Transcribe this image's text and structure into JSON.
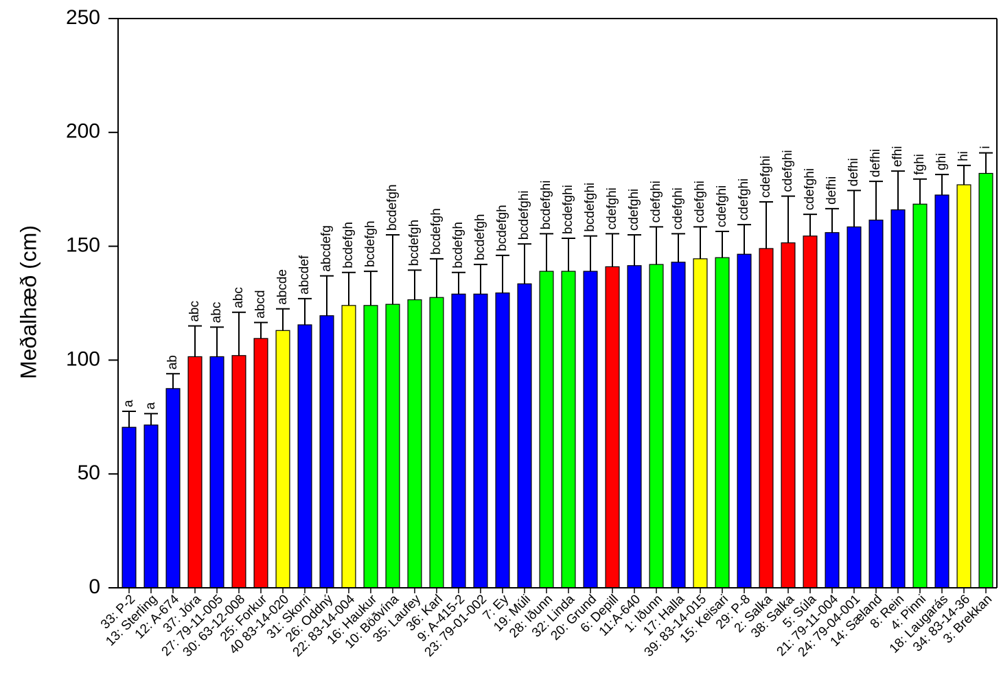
{
  "chart_data": {
    "type": "bar",
    "title": "",
    "xlabel": "",
    "ylabel": "Meðalhæð (cm)",
    "ylim": [
      0,
      250
    ],
    "yticks": [
      0,
      50,
      100,
      150,
      200,
      250
    ],
    "grid": false,
    "legend": "none",
    "error_bars": true,
    "colors": {
      "blue": "#0000ff",
      "red": "#ff0000",
      "yellow": "#ffff00",
      "green": "#00ff00",
      "axis": "#000000"
    },
    "bars": [
      {
        "label": "33: P-2",
        "value": 70.5,
        "error": 7,
        "group": "a",
        "color": "blue"
      },
      {
        "label": "13: Sterling",
        "value": 71.5,
        "error": 5,
        "group": "a",
        "color": "blue"
      },
      {
        "label": "12: A-674",
        "value": 87.5,
        "error": 6.5,
        "group": "ab",
        "color": "blue"
      },
      {
        "label": "37: Jóra",
        "value": 101.5,
        "error": 13.5,
        "group": "abc",
        "color": "red"
      },
      {
        "label": "27: 79-11-005",
        "value": 101.5,
        "error": 13,
        "group": "abc",
        "color": "blue"
      },
      {
        "label": "30: 63-12-008",
        "value": 102,
        "error": 19,
        "group": "abc",
        "color": "red"
      },
      {
        "label": "25: Forkur",
        "value": 109.5,
        "error": 7,
        "group": "abcd",
        "color": "red"
      },
      {
        "label": "40 83-14-020",
        "value": 113,
        "error": 9.5,
        "group": "abcde",
        "color": "yellow"
      },
      {
        "label": "31: Skorri",
        "value": 115.5,
        "error": 11.5,
        "group": "abcdef",
        "color": "blue"
      },
      {
        "label": "26: Oddný",
        "value": 119.5,
        "error": 17.5,
        "group": "abcdefg",
        "color": "blue"
      },
      {
        "label": "22: 83-14-004",
        "value": 124,
        "error": 14.5,
        "group": "bcdefgh",
        "color": "yellow"
      },
      {
        "label": "16: Haukur",
        "value": 124,
        "error": 15,
        "group": "bcdefgh",
        "color": "green"
      },
      {
        "label": "10: Böðvína",
        "value": 124.5,
        "error": 30.5,
        "group": "bcdefgh",
        "color": "green"
      },
      {
        "label": "35: Laufey",
        "value": 126.5,
        "error": 13,
        "group": "bcdefgh",
        "color": "green"
      },
      {
        "label": "36: Karl",
        "value": 127.5,
        "error": 17,
        "group": "bcdefgh",
        "color": "green"
      },
      {
        "label": "9: A-415-2",
        "value": 129,
        "error": 9.5,
        "group": "bcdefgh",
        "color": "blue"
      },
      {
        "label": "23: 79-01-002",
        "value": 129,
        "error": 13,
        "group": "bcdefgh",
        "color": "blue"
      },
      {
        "label": "7: Ey",
        "value": 129.5,
        "error": 16.5,
        "group": "bcdefgh",
        "color": "blue"
      },
      {
        "label": "19: Múli",
        "value": 133.5,
        "error": 17.5,
        "group": "bcdefghi",
        "color": "blue"
      },
      {
        "label": "28: Iðunn",
        "value": 139,
        "error": 16.5,
        "group": "bcdefghi",
        "color": "green"
      },
      {
        "label": "32: Linda",
        "value": 139,
        "error": 14.5,
        "group": "bcdefghi",
        "color": "green"
      },
      {
        "label": "20: Grund",
        "value": 139,
        "error": 15.5,
        "group": "bcdefghi",
        "color": "blue"
      },
      {
        "label": "6: Depill",
        "value": 141,
        "error": 14.5,
        "group": "cdefghi",
        "color": "red"
      },
      {
        "label": "11:A-640",
        "value": 141.5,
        "error": 13.5,
        "group": "cdefghi",
        "color": "blue"
      },
      {
        "label": "1: Iðunn",
        "value": 142,
        "error": 16.5,
        "group": "cdefghi",
        "color": "green"
      },
      {
        "label": "17: Halla",
        "value": 143,
        "error": 12.5,
        "group": "cdefghi",
        "color": "blue"
      },
      {
        "label": "39: 83-14-015",
        "value": 144.5,
        "error": 14,
        "group": "cdefghi",
        "color": "yellow"
      },
      {
        "label": "15: Keisari",
        "value": 145,
        "error": 11.5,
        "group": "cdefghi",
        "color": "green"
      },
      {
        "label": "29: P-8",
        "value": 146.5,
        "error": 13,
        "group": "cdefghi",
        "color": "blue"
      },
      {
        "label": "2: Salka",
        "value": 149,
        "error": 20.5,
        "group": "cdefghi",
        "color": "red"
      },
      {
        "label": "38: Salka",
        "value": 151.5,
        "error": 20.5,
        "group": "cdefghi",
        "color": "red"
      },
      {
        "label": "5: Súla",
        "value": 154.5,
        "error": 9.5,
        "group": "cdefghi",
        "color": "red"
      },
      {
        "label": "21: 79-11-004",
        "value": 156,
        "error": 10.5,
        "group": "defhi",
        "color": "blue"
      },
      {
        "label": "24: 79-04-001",
        "value": 158.5,
        "error": 16,
        "group": "defhi",
        "color": "blue"
      },
      {
        "label": "14: Sæland",
        "value": 161.5,
        "error": 17,
        "group": "defhi",
        "color": "blue"
      },
      {
        "label": "8: Rein",
        "value": 166,
        "error": 17,
        "group": "efhi",
        "color": "blue"
      },
      {
        "label": "4: Pinni",
        "value": 168.5,
        "error": 11,
        "group": "fghi",
        "color": "green"
      },
      {
        "label": "18: Laugarás",
        "value": 172.5,
        "error": 9,
        "group": "ghi",
        "color": "blue"
      },
      {
        "label": "34: 83-14-36",
        "value": 177,
        "error": 8.5,
        "group": "hi",
        "color": "yellow"
      },
      {
        "label": "3: Brekkan",
        "value": 182,
        "error": 9,
        "group": "i",
        "color": "green"
      }
    ]
  }
}
